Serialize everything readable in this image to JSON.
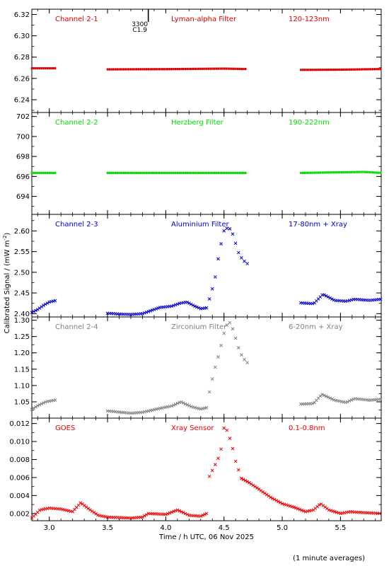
{
  "figure": {
    "shared_xlabel": "Time / h UTC, 06 Nov 2025",
    "shared_ylabel": "Calibrated Signal / (mW m",
    "ylabel_exponent": "-2",
    "ylabel_close": ")",
    "footnote": "(1 minute averages)",
    "flare_marker": {
      "x": 3.85,
      "label_top": "3300",
      "label_bottom": "C1.9",
      "color": "#000000"
    }
  },
  "chart_data": [
    {
      "type": "scatter",
      "labels": {
        "channel": "Channel 2-1",
        "filter": "Lyman-alpha Filter",
        "band": "120-123nm"
      },
      "color": "#dd0000",
      "marker": "dot",
      "xlim": [
        2.85,
        5.85
      ],
      "ylim": [
        6.228,
        6.325
      ],
      "yticks": [
        6.24,
        6.26,
        6.28,
        6.3,
        6.32
      ],
      "ytick_labels": [
        "6.24",
        "6.26",
        "6.28",
        "6.30",
        "6.32"
      ],
      "grid": false,
      "segments": [
        {
          "start": 2.85,
          "end": 3.06,
          "step": 0.0167,
          "points": [
            [
              2.85,
              6.2695
            ],
            [
              3.06,
              6.2695
            ]
          ]
        },
        {
          "start": 3.5,
          "end": 4.7,
          "step": 0.0167,
          "points": [
            [
              3.5,
              6.2685
            ],
            [
              4.0,
              6.2687
            ],
            [
              4.5,
              6.2692
            ],
            [
              4.7,
              6.2688
            ]
          ]
        },
        {
          "start": 5.16,
          "end": 5.85,
          "step": 0.0167,
          "points": [
            [
              5.16,
              6.268
            ],
            [
              5.5,
              6.2682
            ],
            [
              5.85,
              6.2688
            ]
          ]
        }
      ]
    },
    {
      "type": "scatter",
      "labels": {
        "channel": "Channel 2-2",
        "filter": "Herzberg Filter",
        "band": "190-222nm"
      },
      "color": "#00dd00",
      "marker": "dot",
      "xlim": [
        2.85,
        5.85
      ],
      "ylim": [
        692.2,
        702.4
      ],
      "yticks": [
        694,
        696,
        698,
        700,
        702
      ],
      "ytick_labels": [
        "694",
        "696",
        "698",
        "700",
        "702"
      ],
      "grid": false,
      "segments": [
        {
          "start": 2.85,
          "end": 3.06,
          "step": 0.0167,
          "points": [
            [
              2.85,
              696.35
            ],
            [
              3.06,
              696.35
            ]
          ]
        },
        {
          "start": 3.5,
          "end": 4.7,
          "step": 0.0167,
          "points": [
            [
              3.5,
              696.35
            ],
            [
              4.7,
              696.35
            ]
          ]
        },
        {
          "start": 5.16,
          "end": 5.85,
          "step": 0.0167,
          "points": [
            [
              5.16,
              696.35
            ],
            [
              5.7,
              696.45
            ],
            [
              5.85,
              696.35
            ]
          ]
        }
      ]
    },
    {
      "type": "scatter",
      "labels": {
        "channel": "Channel 2-3",
        "filter": "Aluminium Filter",
        "band": "17-80nm + Xray"
      },
      "color": "#0000cc",
      "marker": "x",
      "xlim": [
        2.85,
        5.85
      ],
      "ylim": [
        2.392,
        2.64
      ],
      "yticks": [
        2.4,
        2.45,
        2.5,
        2.55,
        2.6
      ],
      "ytick_labels": [
        "2.40",
        "2.45",
        "2.50",
        "2.55",
        "2.60"
      ],
      "grid": false,
      "segments": [
        {
          "start": 2.85,
          "end": 3.06,
          "step": 0.0167,
          "points": [
            [
              2.85,
              2.403
            ],
            [
              2.9,
              2.41
            ],
            [
              2.95,
              2.42
            ],
            [
              3.0,
              2.428
            ],
            [
              3.06,
              2.432
            ]
          ]
        },
        {
          "start": 3.5,
          "end": 3.95,
          "step": 0.0167,
          "points": [
            [
              3.5,
              2.401
            ],
            [
              3.6,
              2.399
            ],
            [
              3.7,
              2.398
            ],
            [
              3.8,
              2.4
            ],
            [
              3.85,
              2.405
            ],
            [
              3.95,
              2.415
            ]
          ]
        },
        {
          "start": 3.95,
          "end": 4.35,
          "step": 0.0167,
          "points": [
            [
              3.95,
              2.415
            ],
            [
              4.05,
              2.418
            ],
            [
              4.12,
              2.425
            ],
            [
              4.18,
              2.428
            ],
            [
              4.25,
              2.418
            ],
            [
              4.3,
              2.412
            ],
            [
              4.35,
              2.414
            ]
          ]
        },
        {
          "start": 4.35,
          "end": 4.7,
          "step": 0.025,
          "points": [
            [
              4.35,
              2.414
            ],
            [
              4.38,
              2.44
            ],
            [
              4.42,
              2.48
            ],
            [
              4.46,
              2.55
            ],
            [
              4.5,
              2.6
            ],
            [
              4.54,
              2.61
            ],
            [
              4.58,
              2.59
            ],
            [
              4.62,
              2.55
            ],
            [
              4.66,
              2.53
            ],
            [
              4.7,
              2.521
            ]
          ]
        },
        {
          "start": 5.16,
          "end": 5.85,
          "step": 0.0167,
          "points": [
            [
              5.16,
              2.426
            ],
            [
              5.27,
              2.424
            ],
            [
              5.35,
              2.447
            ],
            [
              5.45,
              2.432
            ],
            [
              5.55,
              2.43
            ],
            [
              5.62,
              2.435
            ],
            [
              5.75,
              2.432
            ],
            [
              5.85,
              2.435
            ]
          ]
        }
      ]
    },
    {
      "type": "scatter",
      "labels": {
        "channel": "Channel 2-4",
        "filter": "Zirconium Filter",
        "band": "6-20nm + Xray"
      },
      "color": "#808080",
      "marker": "x",
      "xlim": [
        2.85,
        5.85
      ],
      "ylim": [
        1.0,
        1.31
      ],
      "yticks": [
        1.05,
        1.1,
        1.15,
        1.2,
        1.25,
        1.3
      ],
      "ytick_labels": [
        "1.05",
        "1.10",
        "1.15",
        "1.20",
        "1.25",
        "1.30"
      ],
      "grid": false,
      "segments": [
        {
          "start": 2.85,
          "end": 3.06,
          "step": 0.0167,
          "points": [
            [
              2.85,
              1.027
            ],
            [
              2.9,
              1.038
            ],
            [
              2.97,
              1.05
            ],
            [
              3.06,
              1.056
            ]
          ]
        },
        {
          "start": 3.5,
          "end": 4.35,
          "step": 0.0167,
          "points": [
            [
              3.5,
              1.022
            ],
            [
              3.7,
              1.015
            ],
            [
              3.8,
              1.018
            ],
            [
              3.95,
              1.03
            ],
            [
              4.05,
              1.037
            ],
            [
              4.13,
              1.05
            ],
            [
              4.22,
              1.035
            ],
            [
              4.3,
              1.028
            ],
            [
              4.35,
              1.032
            ]
          ]
        },
        {
          "start": 4.35,
          "end": 4.7,
          "step": 0.025,
          "points": [
            [
              4.35,
              1.032
            ],
            [
              4.38,
              1.09
            ],
            [
              4.42,
              1.15
            ],
            [
              4.46,
              1.2
            ],
            [
              4.5,
              1.26
            ],
            [
              4.54,
              1.3
            ],
            [
              4.58,
              1.27
            ],
            [
              4.62,
              1.22
            ],
            [
              4.66,
              1.185
            ],
            [
              4.7,
              1.17
            ]
          ]
        },
        {
          "start": 5.16,
          "end": 5.85,
          "step": 0.0167,
          "points": [
            [
              5.16,
              1.043
            ],
            [
              5.27,
              1.045
            ],
            [
              5.34,
              1.073
            ],
            [
              5.45,
              1.055
            ],
            [
              5.55,
              1.048
            ],
            [
              5.62,
              1.06
            ],
            [
              5.75,
              1.055
            ],
            [
              5.85,
              1.058
            ]
          ]
        }
      ]
    },
    {
      "type": "scatter",
      "labels": {
        "channel": "GOES",
        "filter": "Xray Sensor",
        "band": "0.1-0.8nm"
      },
      "color": "#ee0000",
      "marker": "x",
      "xlim": [
        2.85,
        5.85
      ],
      "ylim": [
        0.0012,
        0.0126
      ],
      "yticks": [
        0.002,
        0.004,
        0.006,
        0.008,
        0.01,
        0.012
      ],
      "ytick_labels": [
        "0.002",
        "0.004",
        "0.006",
        "0.008",
        "0.010",
        "0.012"
      ],
      "grid": false,
      "segments": [
        {
          "start": 2.85,
          "end": 3.5,
          "step": 0.0167,
          "points": [
            [
              2.85,
              0.0015
            ],
            [
              2.92,
              0.0024
            ],
            [
              3.0,
              0.0026
            ],
            [
              3.1,
              0.0025
            ],
            [
              3.2,
              0.0022
            ],
            [
              3.27,
              0.0032
            ],
            [
              3.34,
              0.0025
            ],
            [
              3.42,
              0.0018
            ],
            [
              3.5,
              0.0016
            ]
          ]
        },
        {
          "start": 3.5,
          "end": 4.35,
          "step": 0.0167,
          "points": [
            [
              3.5,
              0.0016
            ],
            [
              3.7,
              0.0015
            ],
            [
              3.8,
              0.0016
            ],
            [
              3.85,
              0.002
            ],
            [
              4.0,
              0.0019
            ],
            [
              4.1,
              0.0024
            ],
            [
              4.2,
              0.0018
            ],
            [
              4.3,
              0.0017
            ],
            [
              4.35,
              0.002
            ]
          ]
        },
        {
          "start": 4.35,
          "end": 4.65,
          "step": 0.025,
          "points": [
            [
              4.35,
              0.002
            ],
            [
              4.37,
              0.006
            ],
            [
              4.42,
              0.0073
            ],
            [
              4.47,
              0.0087
            ],
            [
              4.5,
              0.0115
            ],
            [
              4.53,
              0.0112
            ],
            [
              4.57,
              0.0095
            ],
            [
              4.6,
              0.0078
            ],
            [
              4.65,
              0.0059
            ]
          ]
        },
        {
          "start": 4.65,
          "end": 5.85,
          "step": 0.0167,
          "points": [
            [
              4.65,
              0.0059
            ],
            [
              4.72,
              0.0054
            ],
            [
              4.8,
              0.0047
            ],
            [
              4.9,
              0.0038
            ],
            [
              5.0,
              0.0031
            ],
            [
              5.1,
              0.0027
            ],
            [
              5.2,
              0.0022
            ],
            [
              5.27,
              0.0024
            ],
            [
              5.33,
              0.0031
            ],
            [
              5.4,
              0.0024
            ],
            [
              5.5,
              0.002
            ],
            [
              5.58,
              0.0022
            ],
            [
              5.7,
              0.0021
            ],
            [
              5.85,
              0.002
            ]
          ]
        }
      ]
    }
  ],
  "x_axis": {
    "xlim": [
      2.85,
      5.85
    ],
    "ticks": [
      3.0,
      3.5,
      4.0,
      4.5,
      5.0,
      5.5
    ],
    "tick_labels": [
      "3.0",
      "3.5",
      "4.0",
      "4.5",
      "5.0",
      "5.5"
    ],
    "minor_step": 0.1
  }
}
